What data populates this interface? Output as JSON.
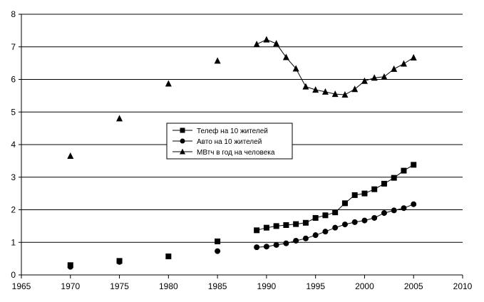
{
  "chart_data": {
    "type": "line",
    "title": "",
    "xlabel": "",
    "ylabel": "",
    "xlim": [
      1965,
      2010
    ],
    "ylim": [
      0,
      8
    ],
    "x_ticks": [
      "1965",
      "1970",
      "1975",
      "1980",
      "1985",
      "1990",
      "1995",
      "2000",
      "2005",
      "2010"
    ],
    "y_ticks": [
      "0",
      "1",
      "2",
      "3",
      "4",
      "5",
      "6",
      "7",
      "8"
    ],
    "grid": "horizontal",
    "legend_position": "center-left",
    "series": [
      {
        "name": "Телеф на 10 жителей",
        "marker": "square",
        "points": [
          {
            "x": 1970,
            "y": 0.3
          },
          {
            "x": 1975,
            "y": 0.43
          },
          {
            "x": 1980,
            "y": 0.57
          },
          {
            "x": 1985,
            "y": 1.03
          },
          {
            "x": 1989,
            "y": 1.37
          },
          {
            "x": 1990,
            "y": 1.45
          },
          {
            "x": 1991,
            "y": 1.5
          },
          {
            "x": 1992,
            "y": 1.53
          },
          {
            "x": 1993,
            "y": 1.56
          },
          {
            "x": 1994,
            "y": 1.6
          },
          {
            "x": 1995,
            "y": 1.75
          },
          {
            "x": 1996,
            "y": 1.83
          },
          {
            "x": 1997,
            "y": 1.92
          },
          {
            "x": 1998,
            "y": 2.2
          },
          {
            "x": 1999,
            "y": 2.45
          },
          {
            "x": 2000,
            "y": 2.5
          },
          {
            "x": 2001,
            "y": 2.63
          },
          {
            "x": 2002,
            "y": 2.8
          },
          {
            "x": 2003,
            "y": 2.98
          },
          {
            "x": 2004,
            "y": 3.2
          },
          {
            "x": 2005,
            "y": 3.38
          }
        ],
        "line_from_x": 1989
      },
      {
        "name": "Авто на 10 жителей",
        "marker": "circle",
        "points": [
          {
            "x": 1970,
            "y": 0.25
          },
          {
            "x": 1975,
            "y": 0.4
          },
          {
            "x": 1985,
            "y": 0.73
          },
          {
            "x": 1989,
            "y": 0.85
          },
          {
            "x": 1990,
            "y": 0.87
          },
          {
            "x": 1991,
            "y": 0.92
          },
          {
            "x": 1992,
            "y": 0.97
          },
          {
            "x": 1993,
            "y": 1.05
          },
          {
            "x": 1994,
            "y": 1.12
          },
          {
            "x": 1995,
            "y": 1.22
          },
          {
            "x": 1996,
            "y": 1.33
          },
          {
            "x": 1997,
            "y": 1.45
          },
          {
            "x": 1998,
            "y": 1.55
          },
          {
            "x": 1999,
            "y": 1.62
          },
          {
            "x": 2000,
            "y": 1.67
          },
          {
            "x": 2001,
            "y": 1.75
          },
          {
            "x": 2002,
            "y": 1.9
          },
          {
            "x": 2003,
            "y": 1.98
          },
          {
            "x": 2004,
            "y": 2.05
          },
          {
            "x": 2005,
            "y": 2.17
          }
        ],
        "line_from_x": 1989
      },
      {
        "name": "МВтч в год на человека",
        "marker": "triangle",
        "points": [
          {
            "x": 1970,
            "y": 3.65
          },
          {
            "x": 1975,
            "y": 4.8
          },
          {
            "x": 1980,
            "y": 5.87
          },
          {
            "x": 1985,
            "y": 6.57
          },
          {
            "x": 1989,
            "y": 7.08
          },
          {
            "x": 1990,
            "y": 7.22
          },
          {
            "x": 1991,
            "y": 7.1
          },
          {
            "x": 1992,
            "y": 6.68
          },
          {
            "x": 1993,
            "y": 6.33
          },
          {
            "x": 1994,
            "y": 5.78
          },
          {
            "x": 1995,
            "y": 5.68
          },
          {
            "x": 1996,
            "y": 5.62
          },
          {
            "x": 1997,
            "y": 5.55
          },
          {
            "x": 1998,
            "y": 5.53
          },
          {
            "x": 1999,
            "y": 5.7
          },
          {
            "x": 2000,
            "y": 5.95
          },
          {
            "x": 2001,
            "y": 6.05
          },
          {
            "x": 2002,
            "y": 6.08
          },
          {
            "x": 2003,
            "y": 6.32
          },
          {
            "x": 2004,
            "y": 6.48
          },
          {
            "x": 2005,
            "y": 6.67
          }
        ],
        "line_from_x": 1989
      }
    ]
  }
}
